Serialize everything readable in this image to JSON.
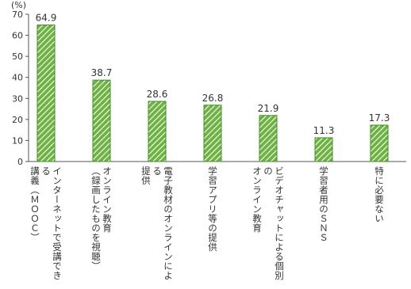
{
  "chart_data": {
    "type": "bar",
    "y_unit": "(%)",
    "categories": [
      "インターネットで受講できる\n講義（ＭＯＯＣ）",
      "オンライン教育\n（録画したものを視聴）",
      "電子教材のオンラインによる\n提供",
      "学習アプリ等の提供",
      "ビデオチャットによる個別の\nオンライン教育",
      "学習者用のＳＮＳ",
      "特に必要ない"
    ],
    "values": [
      64.9,
      38.7,
      28.6,
      26.8,
      21.9,
      11.3,
      17.3
    ],
    "color": "#6cb33f",
    "ylim": [
      0,
      70
    ],
    "yticks": [
      0,
      10,
      20,
      30,
      40,
      50,
      60,
      70
    ],
    "grid": false
  }
}
